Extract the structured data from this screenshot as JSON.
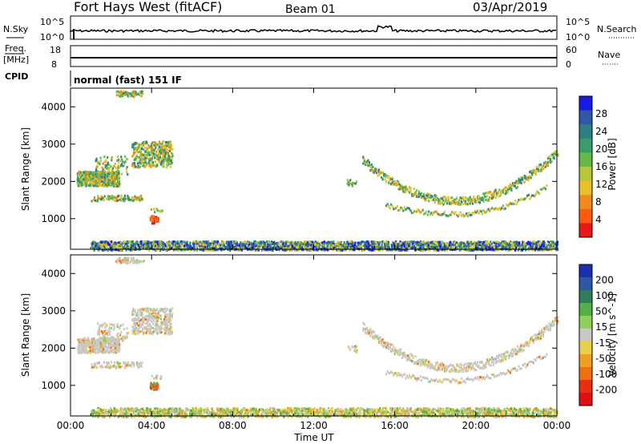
{
  "header": {
    "station": "Fort Hays West (fitACF)",
    "beam": "Beam 01",
    "date": "03/Apr/2019"
  },
  "strips": {
    "nsky": {
      "label": "N.Sky",
      "ticks": [
        "10^5",
        "10^0"
      ]
    },
    "nsearch": {
      "label": "N.Search",
      "ticks": [
        "10^5",
        "10^0"
      ]
    },
    "freq": {
      "label_top": "Freq.",
      "label_bottom": "[MHz]",
      "ticks": [
        "18",
        "8"
      ]
    },
    "nave": {
      "label": "Nave",
      "ticks": [
        "60",
        "0"
      ]
    },
    "cpid": {
      "label": "CPID",
      "mode": "normal (fast) 151 IF"
    }
  },
  "chart_data": [
    {
      "type": "heatmap",
      "panel": "power",
      "ylabel": "Slant Range [km]",
      "xlabel": "",
      "x_ticks": [
        "00:00",
        "04:00",
        "08:00",
        "12:00",
        "16:00",
        "20:00",
        "00:00"
      ],
      "y_ticks": [
        1000,
        2000,
        3000,
        4000
      ],
      "ylim": [
        180,
        4500
      ],
      "xlim_hours": [
        0,
        24
      ],
      "colorbar": {
        "label": "Power [dB]",
        "ticks": [
          "28",
          "24",
          "20",
          "16",
          "12",
          "8",
          "4"
        ],
        "colors": [
          "#1a1ae6",
          "#2f59a8",
          "#2e7f85",
          "#3a9c6b",
          "#66b84a",
          "#b8c73a",
          "#e8c02a",
          "#f08a1a",
          "#ff5a10",
          "#e81818"
        ]
      }
    },
    {
      "type": "heatmap",
      "panel": "velocity",
      "ylabel": "Slant Range [km]",
      "xlabel": "Time UT",
      "x_ticks": [
        "00:00",
        "04:00",
        "08:00",
        "12:00",
        "16:00",
        "20:00",
        "00:00"
      ],
      "y_ticks": [
        1000,
        2000,
        3000,
        4000
      ],
      "ylim": [
        180,
        4500
      ],
      "xlim_hours": [
        0,
        24
      ],
      "colorbar": {
        "label": "Velocity [m s^-1]",
        "ticks": [
          "200",
          "100",
          "50",
          "15",
          "-15",
          "-50",
          "-100",
          "-200"
        ],
        "colors": [
          "#1c2fae",
          "#2f57a7",
          "#2f7d5a",
          "#53b048",
          "#8fd05a",
          "#c8c8c8",
          "#e8d04a",
          "#f0a020",
          "#f07010",
          "#e83010",
          "#e01010"
        ]
      }
    }
  ]
}
